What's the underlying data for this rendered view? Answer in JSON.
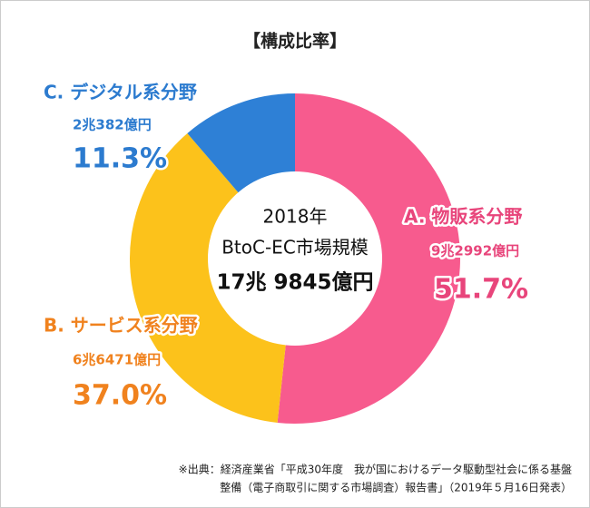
{
  "chart_data": {
    "type": "donut",
    "title": "【構成比率】",
    "center_text": [
      "2018年",
      "BtoC-EC市場規模",
      "17兆 9845億円"
    ],
    "categories": [
      "A. 物販系分野",
      "B. サービス系分野",
      "C. デジタル系分野"
    ],
    "values": [
      51.7,
      37.0,
      11.3
    ],
    "value_labels": [
      "51.7%",
      "37.0%",
      "11.3%"
    ],
    "amount_labels": [
      "9兆2992億円",
      "6兆6471億円",
      "2兆382億円"
    ],
    "colors": [
      "#f75b8e",
      "#fcc21b",
      "#2e80d6"
    ],
    "label_colors": [
      "#e8457b",
      "#f0821e",
      "#2c7bcf"
    ],
    "footnote": [
      "※出典：経済産業省「平成30年度　我が国におけるデータ駆動型社会に係る基盤",
      "整備（電子商取引に関する市場調査）報告書」（2019年５月16日発表）"
    ]
  }
}
